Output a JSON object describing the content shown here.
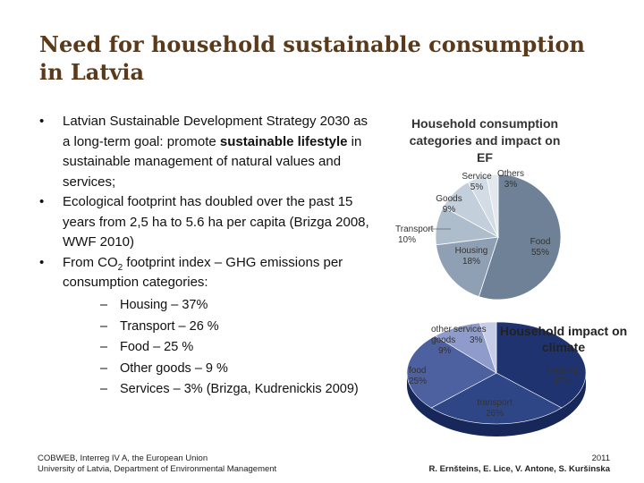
{
  "slide": {
    "title_line1": "Need for household sustainable consumption",
    "title_line2": "in Latvia"
  },
  "bullets": [
    {
      "pre": "Latvian Sustainable Development Strategy 2030 as a long-term goal:  promote ",
      "bold": "sustainable lifestyle",
      "post": " in sustainable management of natural values and services;"
    },
    {
      "text": "Ecological footprint has doubled over the past 15 years from 2,5 ha to 5.6 ha per capita (Brizga 2008, WWF 2010)"
    },
    {
      "pre": "From CO",
      "sub": "2",
      "post": " footprint index – GHG emissions per consumption categories:"
    }
  ],
  "subitems": [
    "Housing –  37%",
    "Transport – 26 %",
    "Food – 25 %",
    "Other goods – 9 %",
    "Services – 3% (Brizga, Kudrenickis 2009)"
  ],
  "footer": {
    "line1": "COBWEB, Interreg IV A, the European Union",
    "line2": "University of Latvia, Department of Environmental Management",
    "year": "2011",
    "authors": "R. Ernšteins, E. Lice, V. Antone, S. Kuršinska"
  },
  "chart_data": [
    {
      "type": "pie",
      "title": "Household consumption categories and impact on EF",
      "slices": [
        {
          "label": "Food",
          "value": 55,
          "display": "55%",
          "color": "#6e8196"
        },
        {
          "label": "Housing",
          "value": 18,
          "display": "18%",
          "color": "#8fa0b4"
        },
        {
          "label": "Transport",
          "value": 10,
          "display": "10%",
          "color": "#adbdcc"
        },
        {
          "label": "Goods",
          "value": 9,
          "display": "9%",
          "color": "#c3cfda"
        },
        {
          "label": "Service",
          "value": 5,
          "display": "5%",
          "color": "#d3dce5"
        },
        {
          "label": "Others",
          "value": 3,
          "display": "3%",
          "color": "#e2e8ee"
        }
      ]
    },
    {
      "type": "pie",
      "title": "Household impact on climate",
      "slices": [
        {
          "label": "housing",
          "value": 37,
          "display": "37%",
          "color": "#1f3370"
        },
        {
          "label": "transport",
          "value": 26,
          "display": "26%",
          "color": "#2f4686"
        },
        {
          "label": "food",
          "value": 25,
          "display": "25%",
          "color": "#4d60a0"
        },
        {
          "label": "other goods",
          "value": 9,
          "display": "9%",
          "color": "#8f9ccb"
        },
        {
          "label": "services",
          "value": 3,
          "display": "3%",
          "color": "#c6cde6"
        }
      ]
    }
  ]
}
